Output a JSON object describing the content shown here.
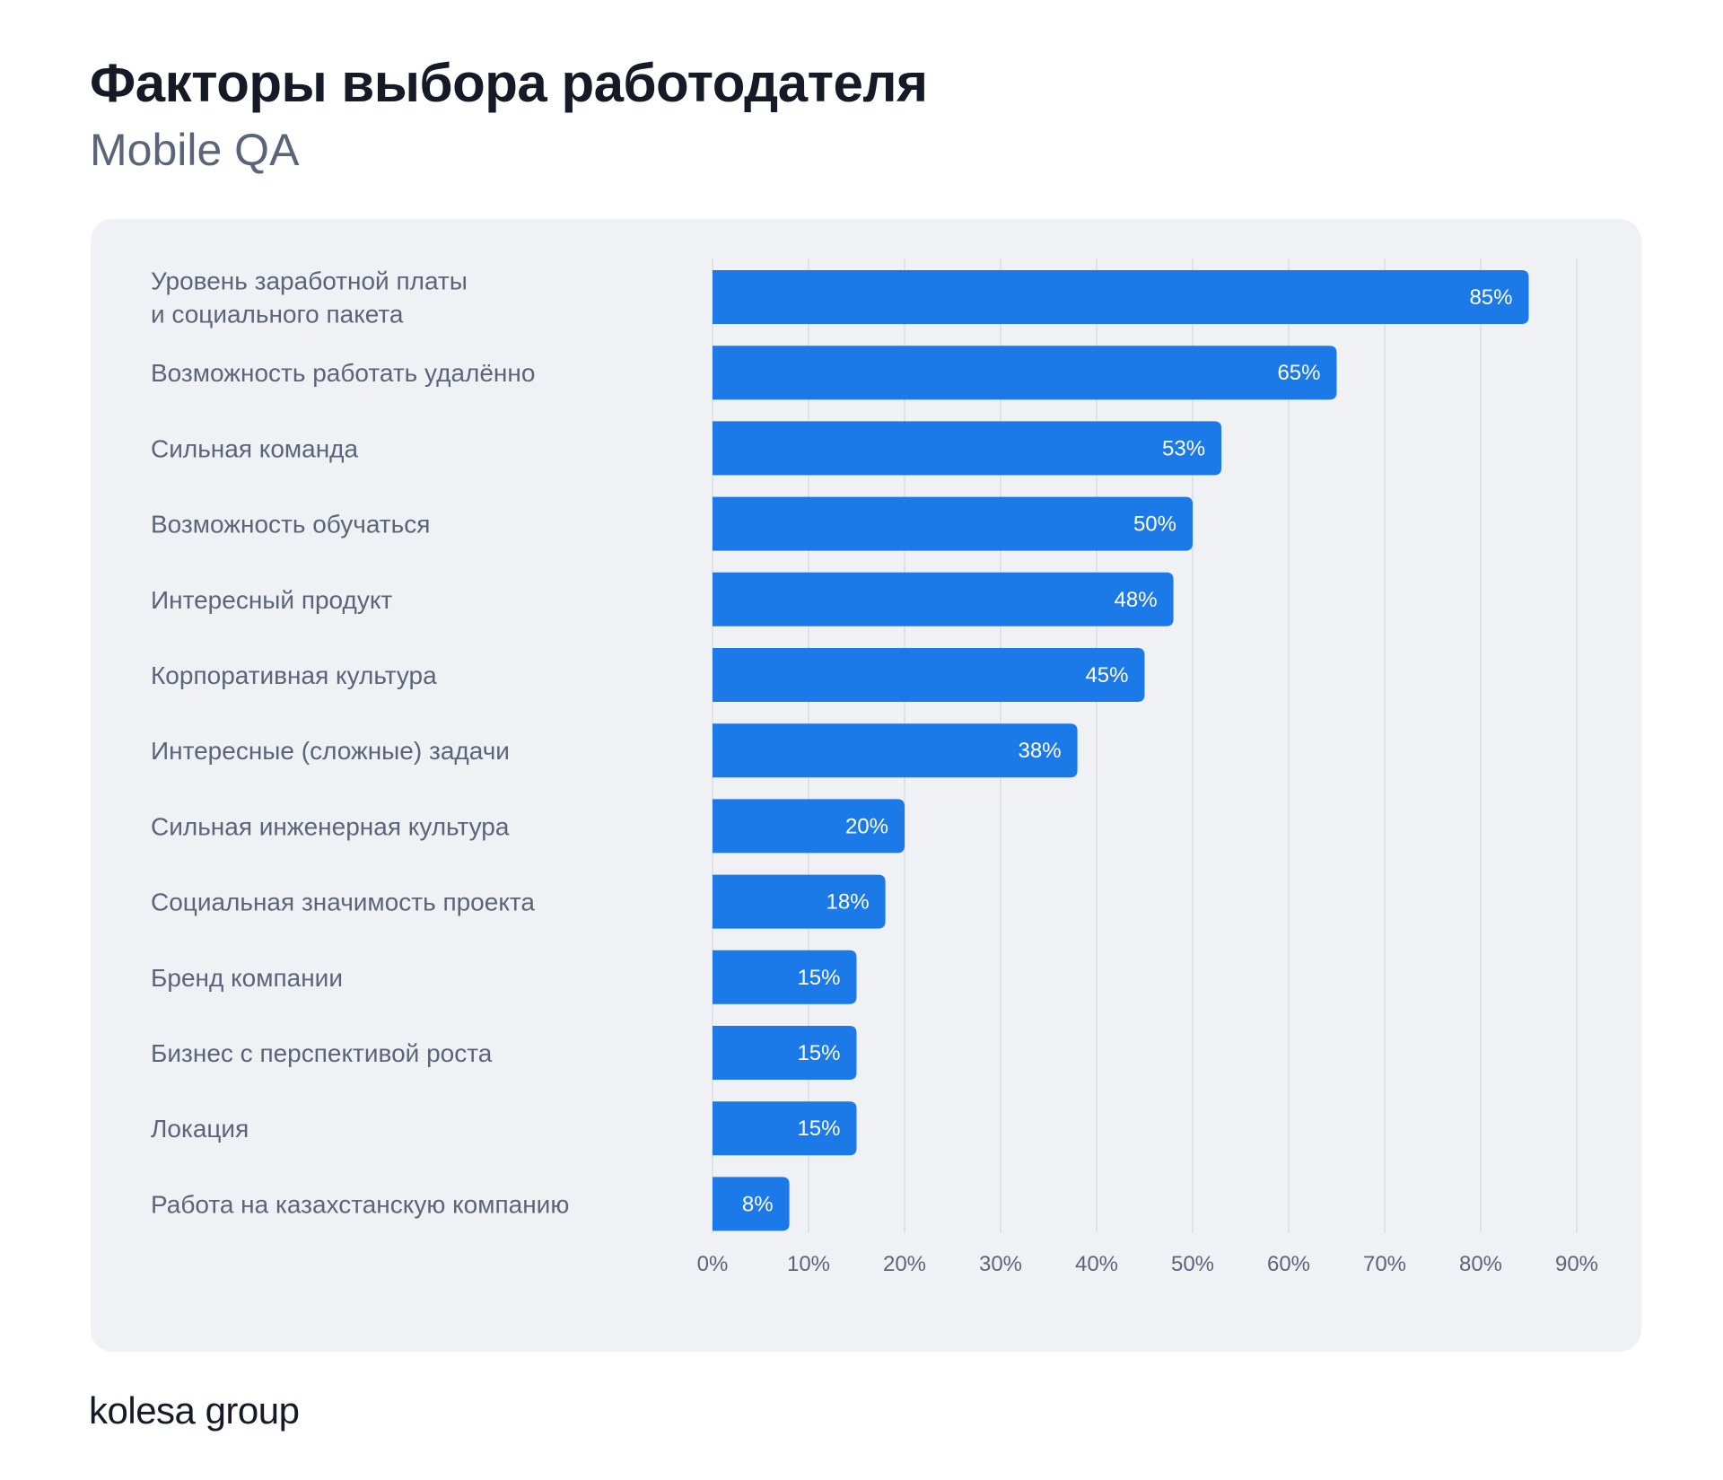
{
  "header": {
    "title": "Факторы выбора работодателя",
    "subtitle": "Mobile QA"
  },
  "footer": {
    "brand": "kolesa group"
  },
  "colors": {
    "bar": "#1b7ae8",
    "grid": "#d7dae0",
    "label": "#5b6579",
    "bar_text": "#ffffff",
    "panel": "#eff1f5"
  },
  "chart_data": {
    "type": "bar",
    "orientation": "horizontal",
    "title": "Факторы выбора работодателя",
    "subtitle": "Mobile QA",
    "categories": [
      [
        "Уровень заработной платы",
        "и социального пакета"
      ],
      [
        "Возможность работать удалённо"
      ],
      [
        "Сильная команда"
      ],
      [
        "Возможность обучаться"
      ],
      [
        "Интересный продукт"
      ],
      [
        "Корпоративная культура"
      ],
      [
        "Интересные (сложные) задачи"
      ],
      [
        "Сильная инженерная культура"
      ],
      [
        "Социальная значимость проекта"
      ],
      [
        "Бренд компании"
      ],
      [
        "Бизнес с перспективой роста"
      ],
      [
        "Локация"
      ],
      [
        "Работа на казахстанскую компанию"
      ]
    ],
    "values": [
      85,
      65,
      53,
      50,
      48,
      45,
      38,
      20,
      18,
      15,
      15,
      15,
      8
    ],
    "value_labels": [
      "85%",
      "65%",
      "53%",
      "50%",
      "48%",
      "45%",
      "38%",
      "20%",
      "18%",
      "15%",
      "15%",
      "15%",
      "8%"
    ],
    "xlim": [
      0,
      90
    ],
    "xticks": [
      0,
      10,
      20,
      30,
      40,
      50,
      60,
      70,
      80,
      90
    ],
    "xtick_labels": [
      "0%",
      "10%",
      "20%",
      "30%",
      "40%",
      "50%",
      "60%",
      "70%",
      "80%",
      "90%"
    ],
    "xlabel": "",
    "ylabel": "",
    "grid": true,
    "legend": "none"
  }
}
